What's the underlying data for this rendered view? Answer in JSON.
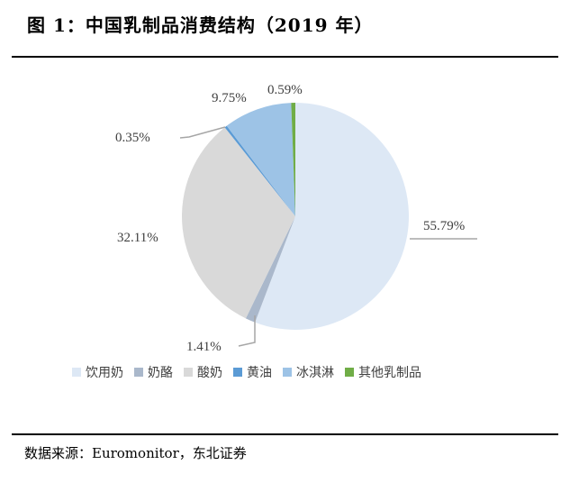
{
  "title": "图 1：中国乳制品消费结构（2019 年）",
  "source": "数据来源：Euromonitor，东北证券",
  "chart_data": {
    "type": "pie",
    "title": "中国乳制品消费结构（2019 年）",
    "categories": [
      "饮用奶",
      "奶酪",
      "酸奶",
      "黄油",
      "冰淇淋",
      "其他乳制品"
    ],
    "values": [
      55.79,
      1.41,
      32.11,
      0.35,
      9.75,
      0.59
    ],
    "labels": [
      "55.79%",
      "1.41%",
      "32.11%",
      "0.35%",
      "9.75%",
      "0.59%"
    ],
    "colors": [
      "#dde8f5",
      "#aab8cb",
      "#d9d9d9",
      "#5b9bd5",
      "#9dc3e6",
      "#70ad47"
    ],
    "start_angle": "12 o'clock, clockwise",
    "legend_position": "bottom"
  },
  "legend": {
    "items": [
      {
        "label": "饮用奶",
        "color": "#dde8f5"
      },
      {
        "label": "奶酪",
        "color": "#aab8cb"
      },
      {
        "label": "酸奶",
        "color": "#d9d9d9"
      },
      {
        "label": "黄油",
        "color": "#5b9bd5"
      },
      {
        "label": "冰淇淋",
        "color": "#9dc3e6"
      },
      {
        "label": "其他乳制品",
        "color": "#70ad47"
      }
    ]
  }
}
